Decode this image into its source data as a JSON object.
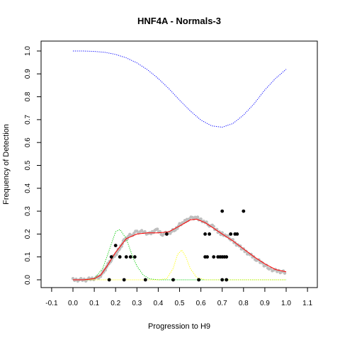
{
  "chart_data": {
    "type": "scatter",
    "title": "HNF4A - Normals-3",
    "xlabel": "Progression to H9",
    "ylabel": "Frequency of Detection",
    "xlim": [
      -0.1,
      1.1
    ],
    "ylim": [
      0,
      1.0
    ],
    "x_ticks": [
      "-0.1",
      "0.0",
      "0.1",
      "0.2",
      "0.3",
      "0.4",
      "0.5",
      "0.6",
      "0.7",
      "0.8",
      "0.9",
      "1.0",
      "1.1"
    ],
    "y_ticks": [
      "0.0",
      "0.1",
      "0.2",
      "0.3",
      "0.4",
      "0.5",
      "0.6",
      "0.7",
      "0.8",
      "0.9",
      "1.0"
    ],
    "grid": false,
    "colors": {
      "observed_points": "#000000",
      "smoothed_points": "#bebebe",
      "fit_line": "#ff0000",
      "detection_curve": "#0000ff",
      "density_1": "#00cc00",
      "density_2": "#ffff00"
    },
    "series": [
      {
        "style": "dotted-line",
        "color": "#0000ff",
        "x": [
          0.0,
          0.05,
          0.1,
          0.15,
          0.2,
          0.25,
          0.3,
          0.35,
          0.4,
          0.45,
          0.5,
          0.55,
          0.6,
          0.65,
          0.7,
          0.75,
          0.8,
          0.85,
          0.9,
          0.95,
          1.0
        ],
        "y": [
          1.0,
          1.0,
          0.998,
          0.994,
          0.985,
          0.97,
          0.948,
          0.918,
          0.88,
          0.835,
          0.785,
          0.738,
          0.698,
          0.673,
          0.667,
          0.683,
          0.72,
          0.77,
          0.83,
          0.88,
          0.92
        ]
      },
      {
        "style": "line",
        "color": "#ff0000",
        "x": [
          0.0,
          0.05,
          0.1,
          0.13,
          0.16,
          0.2,
          0.25,
          0.3,
          0.35,
          0.4,
          0.45,
          0.5,
          0.55,
          0.58,
          0.62,
          0.66,
          0.7,
          0.75,
          0.8,
          0.85,
          0.9,
          0.95,
          1.0
        ],
        "y": [
          0.0,
          0.0,
          0.005,
          0.02,
          0.06,
          0.12,
          0.18,
          0.2,
          0.205,
          0.205,
          0.21,
          0.235,
          0.262,
          0.265,
          0.25,
          0.225,
          0.2,
          0.17,
          0.135,
          0.1,
          0.07,
          0.045,
          0.035
        ]
      },
      {
        "style": "dotted-line",
        "color": "#00cc00",
        "x": [
          0.0,
          0.05,
          0.1,
          0.14,
          0.17,
          0.2,
          0.22,
          0.25,
          0.28,
          0.3,
          0.33,
          0.36,
          0.4,
          0.5,
          0.6,
          0.7,
          0.8,
          0.9,
          1.0
        ],
        "y": [
          0.0,
          0.0,
          0.005,
          0.05,
          0.13,
          0.21,
          0.22,
          0.18,
          0.1,
          0.06,
          0.02,
          0.004,
          0.0,
          0.0,
          0.0,
          0.0,
          0.0,
          0.0,
          0.0
        ]
      },
      {
        "style": "dotted-line",
        "color": "#ffff00",
        "x": [
          0.0,
          0.1,
          0.2,
          0.3,
          0.4,
          0.44,
          0.47,
          0.49,
          0.51,
          0.53,
          0.55,
          0.58,
          0.62,
          0.7,
          0.8,
          0.9,
          1.0
        ],
        "y": [
          0.0,
          0.0,
          0.0,
          0.0,
          0.0,
          0.005,
          0.05,
          0.11,
          0.13,
          0.1,
          0.05,
          0.01,
          0.0,
          0.0,
          0.0,
          0.0,
          0.0
        ]
      },
      {
        "style": "thick-dotted-band",
        "color": "#bebebe",
        "x": [
          0.0,
          0.03,
          0.06,
          0.09,
          0.12,
          0.14,
          0.16,
          0.18,
          0.2,
          0.22,
          0.24,
          0.26,
          0.28,
          0.3,
          0.33,
          0.36,
          0.39,
          0.42,
          0.45,
          0.48,
          0.5,
          0.52,
          0.54,
          0.56,
          0.58,
          0.6,
          0.62,
          0.64,
          0.66,
          0.68,
          0.7,
          0.72,
          0.74,
          0.76,
          0.78,
          0.8,
          0.83,
          0.86,
          0.89,
          0.92,
          0.95,
          0.98,
          1.0
        ],
        "y": [
          0.0,
          0.0,
          0.0,
          0.005,
          0.01,
          0.03,
          0.06,
          0.09,
          0.11,
          0.14,
          0.17,
          0.19,
          0.2,
          0.21,
          0.21,
          0.2,
          0.22,
          0.2,
          0.205,
          0.22,
          0.24,
          0.25,
          0.265,
          0.27,
          0.275,
          0.26,
          0.25,
          0.24,
          0.23,
          0.21,
          0.2,
          0.19,
          0.18,
          0.16,
          0.15,
          0.13,
          0.11,
          0.09,
          0.07,
          0.05,
          0.04,
          0.035,
          0.03
        ]
      },
      {
        "style": "points",
        "color": "#000000",
        "x": [
          0.18,
          0.22,
          0.25,
          0.27,
          0.29,
          0.2,
          0.17,
          0.24,
          0.34,
          0.44,
          0.47,
          0.59,
          0.62,
          0.63,
          0.64,
          0.66,
          0.68,
          0.69,
          0.7,
          0.71,
          0.72,
          0.76,
          0.7,
          0.8,
          0.74,
          0.77,
          0.62,
          0.7,
          0.72
        ],
        "y": [
          0.1,
          0.1,
          0.1,
          0.1,
          0.1,
          0.15,
          0.0,
          0.0,
          0.0,
          0.2,
          0.0,
          0.0,
          0.1,
          0.1,
          0.2,
          0.1,
          0.1,
          0.1,
          0.1,
          0.1,
          0.1,
          0.2,
          0.3,
          0.3,
          0.2,
          0.2,
          0.2,
          0.0,
          0.0
        ]
      }
    ]
  }
}
